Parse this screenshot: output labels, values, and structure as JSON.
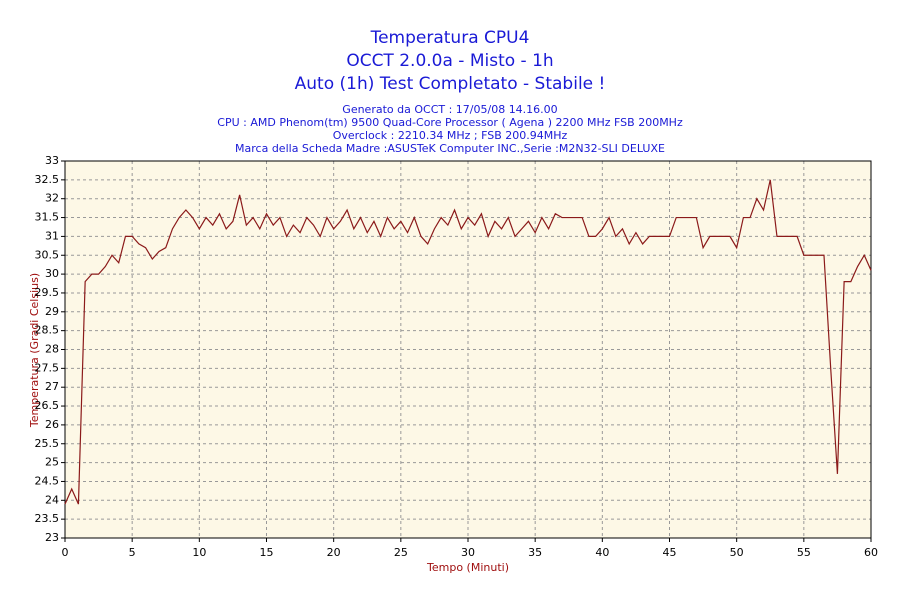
{
  "chart_data": {
    "type": "line",
    "title_lines": [
      "Temperatura CPU4",
      "OCCT 2.0.0a - Misto - 1h",
      "Auto (1h) Test Completato - Stabile !"
    ],
    "info_lines": [
      "Generato da OCCT : 17/05/08 14.16.00",
      "CPU : AMD Phenom(tm) 9500 Quad-Core Processor ( Agena ) 2200 MHz FSB 200MHz",
      "Overclock : 2210.34 MHz ; FSB 200.94MHz",
      "Marca della Scheda Madre :ASUSTeK Computer INC.,Serie :M2N32-SLI DELUXE"
    ],
    "x_label": "Tempo (Minuti)",
    "y_label": "Temperatura (Gradi Celsius)",
    "x": [
      0,
      0.5,
      1,
      1.5,
      2,
      2.5,
      3,
      3.5,
      4,
      4.5,
      5,
      5.5,
      6,
      6.5,
      7,
      7.5,
      8,
      8.5,
      9,
      9.5,
      10,
      10.5,
      11,
      11.5,
      12,
      12.5,
      13,
      13.5,
      14,
      14.5,
      15,
      15.5,
      16,
      16.5,
      17,
      17.5,
      18,
      18.5,
      19,
      19.5,
      20,
      20.5,
      21,
      21.5,
      22,
      22.5,
      23,
      23.5,
      24,
      24.5,
      25,
      25.5,
      26,
      26.5,
      27,
      27.5,
      28,
      28.5,
      29,
      29.5,
      30,
      30.5,
      31,
      31.5,
      32,
      32.5,
      33,
      33.5,
      34,
      34.5,
      35,
      35.5,
      36,
      36.5,
      37,
      37.5,
      38,
      38.5,
      39,
      39.5,
      40,
      40.5,
      41,
      41.5,
      42,
      42.5,
      43,
      43.5,
      44,
      44.5,
      45,
      45.5,
      46,
      46.5,
      47,
      47.5,
      48,
      48.5,
      49,
      49.5,
      50,
      50.5,
      51,
      51.5,
      52,
      52.5,
      53,
      53.5,
      54,
      54.5,
      55,
      55.5,
      56,
      56.5,
      57,
      57.5,
      58,
      58.5,
      59,
      59.5,
      60
    ],
    "series": [
      {
        "name": "Temperatura CPU4",
        "color": "#8b1a1a",
        "values": [
          23.9,
          24.3,
          23.9,
          29.8,
          30,
          30,
          30.2,
          30.5,
          30.3,
          31,
          31,
          30.8,
          30.7,
          30.4,
          30.6,
          30.7,
          31.2,
          31.5,
          31.7,
          31.5,
          31.2,
          31.5,
          31.3,
          31.6,
          31.2,
          31.4,
          32.1,
          31.3,
          31.5,
          31.2,
          31.6,
          31.3,
          31.5,
          31,
          31.3,
          31.1,
          31.5,
          31.3,
          31,
          31.5,
          31.2,
          31.4,
          31.7,
          31.2,
          31.5,
          31.1,
          31.4,
          31,
          31.5,
          31.2,
          31.4,
          31.1,
          31.5,
          31,
          30.8,
          31.2,
          31.5,
          31.3,
          31.7,
          31.2,
          31.5,
          31.3,
          31.6,
          31,
          31.4,
          31.2,
          31.5,
          31,
          31.2,
          31.4,
          31.1,
          31.5,
          31.2,
          31.6,
          31.5,
          31.5,
          31.5,
          31.5,
          31,
          31,
          31.2,
          31.5,
          31,
          31.2,
          30.8,
          31.1,
          30.8,
          31,
          31,
          31,
          31,
          31.5,
          31.5,
          31.5,
          31.5,
          30.7,
          31,
          31,
          31,
          31,
          30.7,
          31.5,
          31.5,
          32,
          31.7,
          32.5,
          31,
          31,
          31,
          31,
          30.5,
          30.5,
          30.5,
          30.5,
          27.5,
          24.7,
          29.8,
          29.8,
          30.2,
          30.5,
          30.1
        ]
      }
    ],
    "xlim": [
      0,
      60
    ],
    "ylim": [
      23,
      33
    ],
    "xticks": [
      0,
      5,
      10,
      15,
      20,
      25,
      30,
      35,
      40,
      45,
      50,
      55,
      60
    ],
    "yticks": [
      23,
      23.5,
      24,
      24.5,
      25,
      25.5,
      26,
      26.5,
      27,
      27.5,
      28,
      28.5,
      29,
      29.5,
      30,
      30.5,
      31,
      31.5,
      32,
      32.5,
      33
    ],
    "grid": true,
    "plot_background": "#fdf8e6"
  }
}
